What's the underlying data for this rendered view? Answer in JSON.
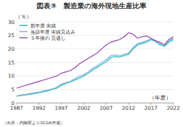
{
  "chart_data": {
    "type": "line",
    "title": "図表⑨　製造業の海外現地生産比率",
    "ylabel": "（％）",
    "xlabel": "（年度）",
    "annotations": [
      "（出所：内閣府よりSCGR作成）"
    ],
    "x": [
      1987,
      1988,
      1989,
      1990,
      1991,
      1992,
      1993,
      1994,
      1995,
      1996,
      1997,
      1998,
      1999,
      2000,
      2001,
      2002,
      2003,
      2004,
      2005,
      2006,
      2007,
      2008,
      2009,
      2010,
      2011,
      2012,
      2013,
      2014,
      2015,
      2016,
      2017,
      2018,
      2019,
      2020,
      2021,
      2022
    ],
    "series": [
      {
        "name": "前年度 実績",
        "color": "#2abfbf",
        "values": [
          2.5,
          2.8,
          3.0,
          3.2,
          3.5,
          3.8,
          4.2,
          4.5,
          5.0,
          5.5,
          6.5,
          7.2,
          7.8,
          8.5,
          9.2,
          10.0,
          11.0,
          12.2,
          13.2,
          14.3,
          15.2,
          16.8,
          17.2,
          17.0,
          17.5,
          18.0,
          20.0,
          21.5,
          22.0,
          22.5,
          23.5,
          22.8,
          21.5,
          21.0,
          22.5,
          23.5
        ]
      },
      {
        "name": "当該年度 実績見込み",
        "color": "#8ab4e0",
        "values": [
          2.6,
          3.0,
          3.2,
          3.5,
          3.8,
          4.0,
          4.5,
          4.8,
          5.2,
          5.8,
          7.0,
          7.5,
          8.0,
          9.0,
          9.8,
          10.5,
          11.5,
          12.8,
          13.8,
          15.0,
          16.0,
          17.5,
          17.8,
          17.5,
          18.0,
          18.5,
          20.5,
          22.0,
          22.5,
          23.0,
          23.8,
          23.2,
          22.0,
          21.5,
          23.0,
          24.0
        ]
      },
      {
        "name": "５年後の 見通し",
        "color": "#9b59b6",
        "values": [
          5.5,
          6.0,
          6.5,
          7.0,
          7.5,
          8.0,
          8.5,
          9.0,
          9.5,
          10.0,
          11.0,
          11.5,
          12.0,
          13.0,
          14.5,
          15.5,
          16.5,
          17.5,
          18.5,
          20.0,
          21.5,
          22.5,
          23.0,
          23.5,
          24.5,
          26.0,
          25.5,
          24.0,
          24.5,
          24.8,
          24.0,
          23.0,
          22.5,
          21.5,
          23.5,
          24.5
        ]
      }
    ],
    "xlim": [
      1987,
      2022
    ],
    "xticks": [
      1987,
      1992,
      1997,
      2002,
      2007,
      2012,
      2017,
      2022
    ],
    "ylim": [
      0,
      30
    ],
    "yticks": [
      0,
      5,
      10,
      15,
      20,
      25,
      30
    ],
    "grid": true,
    "legend": "upper-left"
  }
}
